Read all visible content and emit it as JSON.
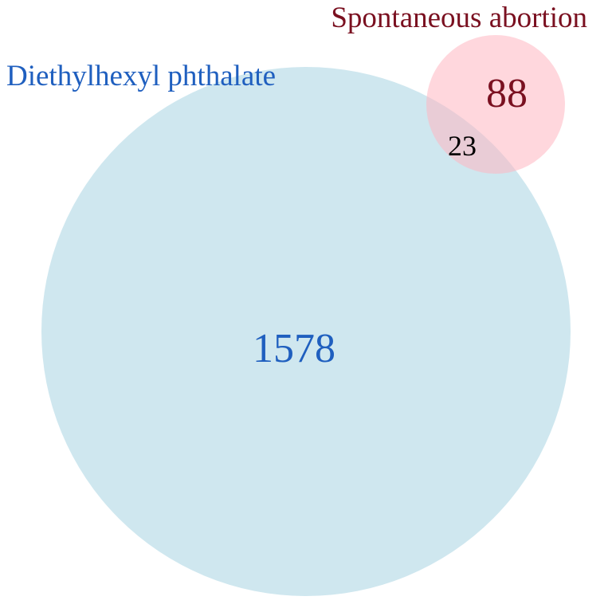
{
  "venn": {
    "sets": [
      {
        "label": "Diethylhexyl phthalate",
        "only_count": "1578",
        "fill_color": "#cfe7ef",
        "text_color": "#1f5fbf"
      },
      {
        "label": "Spontaneous abortion",
        "only_count": "88",
        "fill_color": "#ffb6c1",
        "text_color": "#7a1020"
      }
    ],
    "intersection": {
      "count": "23",
      "text_color": "#000000"
    }
  }
}
